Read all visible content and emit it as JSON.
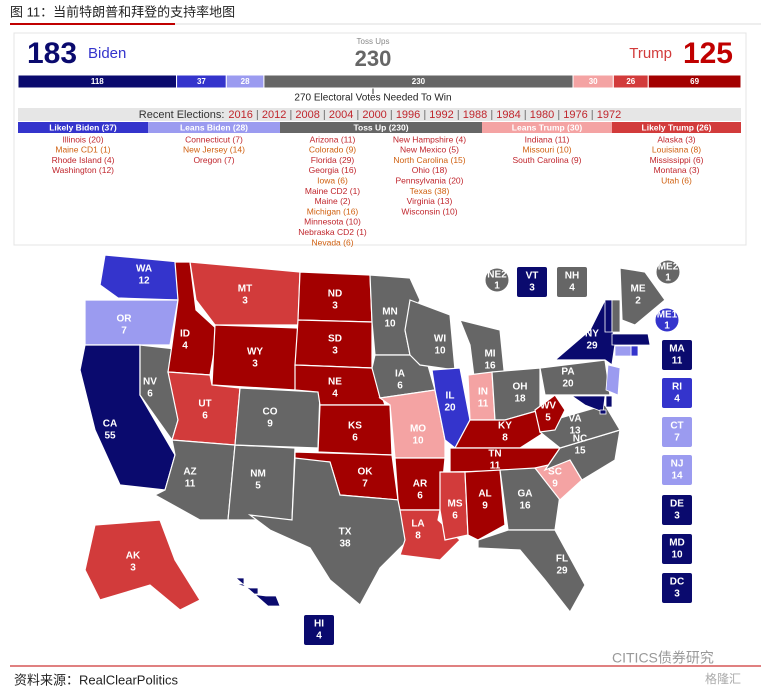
{
  "header": {
    "title": "图 11：当前特朗普和拜登的支持率地图",
    "biden_total": 183,
    "biden_label": "Biden",
    "toss_label": "Toss Ups",
    "toss_total": 230,
    "trump_label": "Trump",
    "trump_total": 125
  },
  "bar": {
    "segments": [
      {
        "value": 118,
        "color": "#0a0a6e"
      },
      {
        "value": 37,
        "color": "#3434cc"
      },
      {
        "value": 28,
        "color": "#9b9bf0"
      },
      {
        "value": 230,
        "color": "#666666"
      },
      {
        "value": 30,
        "color": "#f4a3a3"
      },
      {
        "value": 26,
        "color": "#d23b3b"
      },
      {
        "value": 69,
        "color": "#a30000"
      }
    ],
    "needed": "270 Electoral Votes Needed To Win"
  },
  "recent": {
    "label": "Recent Elections:",
    "years": [
      "2016",
      "2012",
      "2008",
      "2004",
      "2000",
      "1996",
      "1992",
      "1988",
      "1984",
      "1980",
      "1976",
      "1972"
    ]
  },
  "columns": [
    {
      "title": "Likely Biden (37)",
      "color": "#3434cc",
      "items": [
        "Illinois (20)",
        "Maine CD1 (1)",
        "Rhode Island (4)",
        "Washington (12)"
      ]
    },
    {
      "title": "Leans Biden (28)",
      "color": "#9b9bf0",
      "items": [
        "Connecticut (7)",
        "New Jersey (14)",
        "Oregon (7)"
      ]
    },
    {
      "title": "Toss Up (230)",
      "color": "#666666",
      "items": [
        "Arizona (11)",
        "Colorado (9)",
        "Florida (29)",
        "Georgia (16)",
        "Iowa (6)",
        "Maine CD2 (1)",
        "Maine (2)",
        "Michigan (16)",
        "Minnesota (10)",
        "Nebraska CD2 (1)",
        "Nevada (6)",
        "New Hampshire (4)",
        "New Mexico (5)",
        "North Carolina (15)",
        "Ohio (18)",
        "Pennsylvania (20)",
        "Texas (38)",
        "Virginia (13)",
        "Wisconsin (10)"
      ]
    },
    {
      "title": "Leans Trump (30)",
      "color": "#f4a3a3",
      "items": [
        "Indiana (11)",
        "Missouri (10)",
        "South Carolina (9)"
      ]
    },
    {
      "title": "Likely Trump (26)",
      "color": "#d23b3b",
      "items": [
        "Alaska (3)",
        "Louisiana (8)",
        "Mississippi (6)",
        "Montana (3)",
        "Utah (6)"
      ]
    }
  ],
  "map": {
    "states": [
      {
        "abbr": "WA",
        "ev": 12,
        "color": "#3434cc"
      },
      {
        "abbr": "OR",
        "ev": 7,
        "color": "#9b9bf0"
      },
      {
        "abbr": "CA",
        "ev": 55,
        "color": "#0a0a6e"
      },
      {
        "abbr": "NV",
        "ev": 6,
        "color": "#666666"
      },
      {
        "abbr": "ID",
        "ev": 4,
        "color": "#a30000"
      },
      {
        "abbr": "MT",
        "ev": 3,
        "color": "#d23b3b"
      },
      {
        "abbr": "WY",
        "ev": 3,
        "color": "#a30000"
      },
      {
        "abbr": "UT",
        "ev": 6,
        "color": "#d23b3b"
      },
      {
        "abbr": "AZ",
        "ev": 11,
        "color": "#666666"
      },
      {
        "abbr": "NM",
        "ev": 5,
        "color": "#666666"
      },
      {
        "abbr": "CO",
        "ev": 9,
        "color": "#666666"
      },
      {
        "abbr": "ND",
        "ev": 3,
        "color": "#a30000"
      },
      {
        "abbr": "SD",
        "ev": 3,
        "color": "#a30000"
      },
      {
        "abbr": "NE",
        "ev": 4,
        "color": "#a30000"
      },
      {
        "abbr": "KS",
        "ev": 6,
        "color": "#a30000"
      },
      {
        "abbr": "OK",
        "ev": 7,
        "color": "#a30000"
      },
      {
        "abbr": "TX",
        "ev": 38,
        "color": "#666666"
      },
      {
        "abbr": "MN",
        "ev": 10,
        "color": "#666666"
      },
      {
        "abbr": "IA",
        "ev": 6,
        "color": "#666666"
      },
      {
        "abbr": "MO",
        "ev": 10,
        "color": "#f4a3a3"
      },
      {
        "abbr": "AR",
        "ev": 6,
        "color": "#a30000"
      },
      {
        "abbr": "LA",
        "ev": 8,
        "color": "#d23b3b"
      },
      {
        "abbr": "WI",
        "ev": 10,
        "color": "#666666"
      },
      {
        "abbr": "IL",
        "ev": 20,
        "color": "#3434cc"
      },
      {
        "abbr": "MI",
        "ev": 16,
        "color": "#666666"
      },
      {
        "abbr": "IN",
        "ev": 11,
        "color": "#f4a3a3"
      },
      {
        "abbr": "OH",
        "ev": 18,
        "color": "#666666"
      },
      {
        "abbr": "KY",
        "ev": 8,
        "color": "#a30000"
      },
      {
        "abbr": "TN",
        "ev": 11,
        "color": "#a30000"
      },
      {
        "abbr": "MS",
        "ev": 6,
        "color": "#d23b3b"
      },
      {
        "abbr": "AL",
        "ev": 9,
        "color": "#a30000"
      },
      {
        "abbr": "GA",
        "ev": 16,
        "color": "#666666"
      },
      {
        "abbr": "FL",
        "ev": 29,
        "color": "#666666"
      },
      {
        "abbr": "SC",
        "ev": 9,
        "color": "#f4a3a3"
      },
      {
        "abbr": "NC",
        "ev": 15,
        "color": "#666666"
      },
      {
        "abbr": "VA",
        "ev": 13,
        "color": "#666666"
      },
      {
        "abbr": "WV",
        "ev": 5,
        "color": "#a30000"
      },
      {
        "abbr": "PA",
        "ev": 20,
        "color": "#666666"
      },
      {
        "abbr": "NY",
        "ev": 29,
        "color": "#0a0a6e"
      },
      {
        "abbr": "ME",
        "ev": 2,
        "color": "#666666"
      },
      {
        "abbr": "AK",
        "ev": 3,
        "color": "#d23b3b"
      }
    ],
    "districts": [
      {
        "abbr": "NE2",
        "ev": 1,
        "color": "#666666"
      },
      {
        "abbr": "ME2",
        "ev": 1,
        "color": "#666666"
      },
      {
        "abbr": "ME1",
        "ev": 1,
        "color": "#3434cc"
      }
    ],
    "boxes": [
      {
        "abbr": "VT",
        "ev": 3,
        "color": "#0a0a6e"
      },
      {
        "abbr": "NH",
        "ev": 4,
        "color": "#666666"
      },
      {
        "abbr": "MA",
        "ev": 11,
        "color": "#0a0a6e"
      },
      {
        "abbr": "RI",
        "ev": 4,
        "color": "#3434cc"
      },
      {
        "abbr": "CT",
        "ev": 7,
        "color": "#9b9bf0"
      },
      {
        "abbr": "NJ",
        "ev": 14,
        "color": "#9b9bf0"
      },
      {
        "abbr": "DE",
        "ev": 3,
        "color": "#0a0a6e"
      },
      {
        "abbr": "MD",
        "ev": 10,
        "color": "#0a0a6e"
      },
      {
        "abbr": "DC",
        "ev": 3,
        "color": "#0a0a6e"
      },
      {
        "abbr": "HI",
        "ev": 4,
        "color": "#0a0a6e"
      }
    ]
  },
  "footer": {
    "source": "资料来源：RealClearPolitics",
    "watermark": "CITICS债券研究",
    "watermark2": "格隆汇"
  }
}
